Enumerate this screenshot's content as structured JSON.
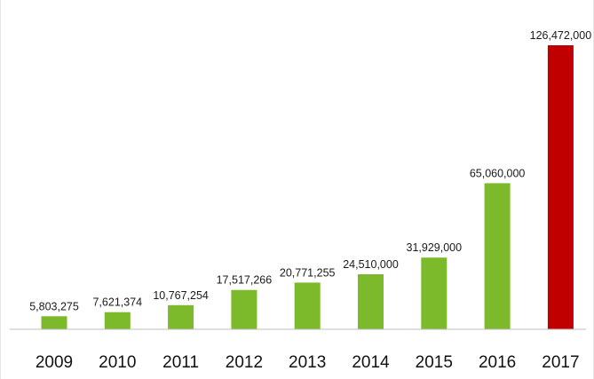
{
  "chart_data": {
    "type": "bar",
    "categories": [
      "2009",
      "2010",
      "2011",
      "2012",
      "2013",
      "2014",
      "2015",
      "2016",
      "2017"
    ],
    "values": [
      5803275,
      7621374,
      10767254,
      17517266,
      20771255,
      24510000,
      31929000,
      65060000,
      126472000
    ],
    "value_labels": [
      "5,803,275",
      "7,621,374",
      "10,767,254",
      "17,517,266",
      "20,771,255",
      "24,510,000",
      "31,929,000",
      "65,060,000",
      "126,472,000"
    ],
    "title": "",
    "xlabel": "",
    "ylabel": "",
    "ylim": [
      0,
      126472000
    ],
    "grid": false,
    "legend": "none",
    "colors": {
      "default_bar": "#7cba2c",
      "highlight_bar": "#c00000",
      "axis": "#bfbfbf",
      "text": "#1a1a1a"
    },
    "highlight_index": 8
  }
}
